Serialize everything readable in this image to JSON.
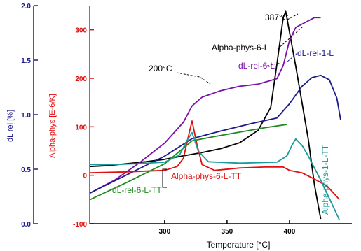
{
  "chart_data": {
    "type": "line",
    "xlabel": "Temperature  [°C]",
    "xlim": [
      240,
      450
    ],
    "x_ticks": [
      {
        "label": "300",
        "value": 300
      },
      {
        "label": "350",
        "value": 350
      },
      {
        "label": "400",
        "value": 400
      }
    ],
    "y_axes": [
      {
        "id": "dl",
        "label": "dL rel  [%]",
        "color": "#1a1a8c",
        "ylim": [
          0.0,
          2.0
        ],
        "ticks": [
          "0.0",
          "0.5",
          "1.0",
          "1.5",
          "2.0"
        ]
      },
      {
        "id": "alpha",
        "label": "Alpha-phys  [E-6/K]",
        "color": "#e01010",
        "ylim": [
          -100,
          350
        ],
        "ticks": [
          "-100",
          "0",
          "100",
          "200",
          "300"
        ]
      }
    ],
    "series": [
      {
        "name": "Alpha-phys-6-L",
        "axis": "alpha",
        "color": "#000000",
        "dash": "",
        "x": [
          240,
          255,
          270,
          285,
          300,
          315,
          330,
          345,
          360,
          375,
          385,
          390,
          395,
          397,
          400,
          405,
          410,
          415,
          420,
          425
        ],
        "y": [
          18,
          20,
          24,
          28,
          33,
          40,
          47,
          55,
          67,
          93,
          140,
          230,
          325,
          338,
          295,
          225,
          150,
          75,
          -20,
          -90
        ]
      },
      {
        "name": "dL-rel-6-L",
        "axis": "dl",
        "color": "#7b10a6",
        "dash": "",
        "x": [
          240,
          260,
          280,
          300,
          315,
          322,
          330,
          345,
          360,
          375,
          390,
          395,
          400,
          405,
          410,
          415,
          420,
          425
        ],
        "y": [
          0.28,
          0.4,
          0.56,
          0.74,
          0.93,
          1.08,
          1.16,
          1.22,
          1.26,
          1.28,
          1.33,
          1.45,
          1.68,
          1.8,
          1.83,
          1.86,
          1.89,
          1.89
        ]
      },
      {
        "name": "dL-rel-1-L",
        "axis": "dl",
        "color": "#1a1a8c",
        "dash": "",
        "x": [
          240,
          270,
          300,
          322,
          345,
          370,
          390,
          400,
          410,
          418,
          425,
          432,
          438,
          441
        ],
        "y": [
          0.28,
          0.45,
          0.62,
          0.78,
          0.85,
          0.92,
          0.97,
          1.1,
          1.26,
          1.34,
          1.36,
          1.32,
          1.15,
          0.95
        ]
      },
      {
        "name": "Alpha-phys-6-L-TT",
        "axis": "alpha",
        "color": "#e01010",
        "dash": "",
        "x": [
          240,
          270,
          300,
          310,
          315,
          319,
          322,
          326,
          330,
          340,
          360,
          380,
          395,
          400,
          410,
          420,
          430,
          440
        ],
        "y": [
          5,
          7,
          10,
          18,
          35,
          80,
          112,
          62,
          22,
          10,
          15,
          17,
          17,
          10,
          5,
          -8,
          -22,
          -50
        ]
      },
      {
        "name": "dL-rel-6-L-TT",
        "axis": "dl",
        "color": "#1e8a1e",
        "dash": "",
        "x": [
          240,
          270,
          300,
          322,
          340,
          360,
          380,
          398
        ],
        "y": [
          0.22,
          0.38,
          0.55,
          0.76,
          0.8,
          0.84,
          0.88,
          0.91
        ]
      },
      {
        "name": "Alpha-phys-1-L-TT",
        "axis": "alpha",
        "color": "#1a9a9a",
        "dash": "",
        "x": [
          240,
          260,
          280,
          300,
          312,
          318,
          322,
          327,
          335,
          360,
          390,
          398,
          402,
          405,
          410,
          415,
          420,
          425,
          432,
          440
        ],
        "y": [
          22,
          22,
          24,
          27,
          42,
          72,
          88,
          50,
          28,
          25,
          27,
          40,
          62,
          75,
          62,
          40,
          15,
          -10,
          -48,
          -92
        ]
      }
    ],
    "annotations": [
      {
        "text": "200°C"
      },
      {
        "text": "387°C"
      },
      {
        "text": "Alpha-phys-6-L"
      },
      {
        "text": "dL-rel-6-L"
      },
      {
        "text": "dL-rel-1-L"
      },
      {
        "text": "Alpha-phys-6-L-TT"
      },
      {
        "text": "dL-rel-6-L-TT"
      },
      {
        "text": "Alpha-phys-1-L-TT"
      }
    ],
    "legend": "none",
    "grid": false
  }
}
